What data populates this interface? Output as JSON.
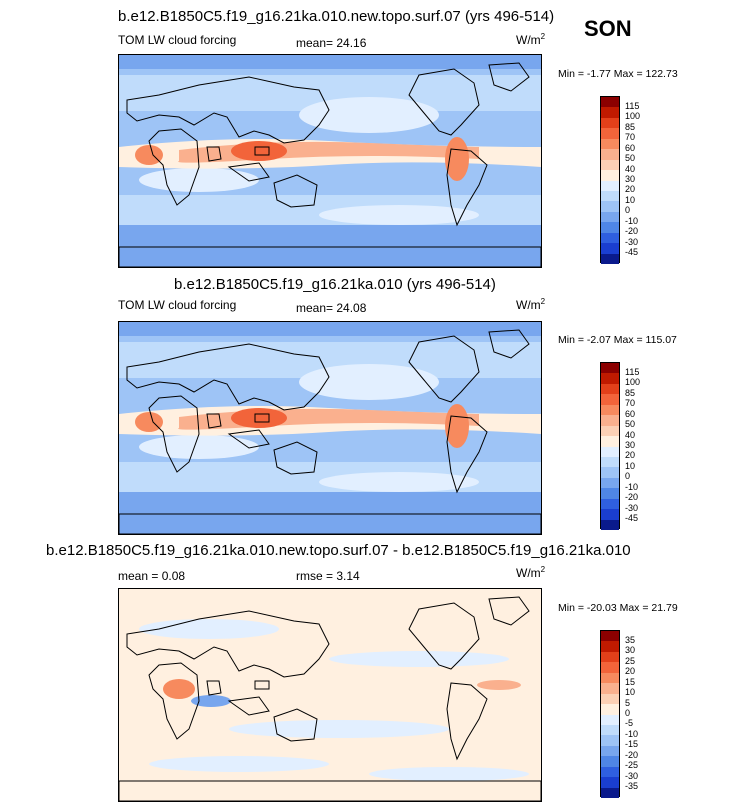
{
  "season": "SON",
  "units_base": "W/m",
  "units_exp": "2",
  "panels": [
    {
      "title": "b.e12.B1850C5.f19_g16.21ka.010.new.topo.surf.07 (yrs 496-514)",
      "subtitle": "TOM LW cloud forcing",
      "stat1": "mean=  24.16",
      "stat2": "",
      "minmax": "Min =  -1.77 Max = 122.73",
      "levels": [
        "115",
        "100",
        "85",
        "70",
        "60",
        "50",
        "40",
        "30",
        "20",
        "10",
        "0",
        "-10",
        "-20",
        "-30",
        "-45"
      ],
      "colors": [
        "#8b0000",
        "#c01a00",
        "#e2401a",
        "#f2643a",
        "#f78a5e",
        "#fab08e",
        "#fcd0b5",
        "#fff0e0",
        "#e2efff",
        "#c0dcfb",
        "#9ec4f6",
        "#78a6ee",
        "#4f86e6",
        "#2f5fe0",
        "#1a3ed0",
        "#0a1a8c"
      ],
      "style": "ltm"
    },
    {
      "title": "b.e12.B1850C5.f19_g16.21ka.010 (yrs 496-514)",
      "subtitle": "TOM LW cloud forcing",
      "stat1": "mean=  24.08",
      "stat2": "",
      "minmax": "Min =  -2.07 Max = 115.07",
      "levels": [
        "115",
        "100",
        "85",
        "70",
        "60",
        "50",
        "40",
        "30",
        "20",
        "10",
        "0",
        "-10",
        "-20",
        "-30",
        "-45"
      ],
      "colors": [
        "#8b0000",
        "#c01a00",
        "#e2401a",
        "#f2643a",
        "#f78a5e",
        "#fab08e",
        "#fcd0b5",
        "#fff0e0",
        "#e2efff",
        "#c0dcfb",
        "#9ec4f6",
        "#78a6ee",
        "#4f86e6",
        "#2f5fe0",
        "#1a3ed0",
        "#0a1a8c"
      ],
      "style": "ltm"
    },
    {
      "title": "b.e12.B1850C5.f19_g16.21ka.010.new.topo.surf.07 - b.e12.B1850C5.f19_g16.21ka.010",
      "subtitle": "mean =   0.08",
      "stat1": "rmse =   3.14",
      "stat2": "",
      "minmax": "Min = -20.03 Max =  21.79",
      "levels": [
        "35",
        "30",
        "25",
        "20",
        "15",
        "10",
        "5",
        "0",
        "-5",
        "-10",
        "-15",
        "-20",
        "-25",
        "-30",
        "-35"
      ],
      "colors": [
        "#8b0000",
        "#c01a00",
        "#e2401a",
        "#f2643a",
        "#f78a5e",
        "#fab08e",
        "#fcd0b5",
        "#fff0e0",
        "#e2efff",
        "#c0dcfb",
        "#9ec4f6",
        "#78a6ee",
        "#4f86e6",
        "#2f5fe0",
        "#1a3ed0",
        "#0a1a8c"
      ],
      "style": "diff"
    }
  ],
  "chart_data": [
    {
      "type": "heatmap",
      "title": "b.e12.B1850C5.f19_g16.21ka.010.new.topo.surf.07 (yrs 496-514)",
      "subtitle": "TOM LW cloud forcing",
      "units": "W/m2",
      "mean": 24.16,
      "min": -1.77,
      "max": 122.73,
      "contour_levels": [
        -45,
        -30,
        -20,
        -10,
        0,
        10,
        20,
        30,
        40,
        50,
        60,
        70,
        85,
        100,
        115
      ]
    },
    {
      "type": "heatmap",
      "title": "b.e12.B1850C5.f19_g16.21ka.010 (yrs 496-514)",
      "subtitle": "TOM LW cloud forcing",
      "units": "W/m2",
      "mean": 24.08,
      "min": -2.07,
      "max": 115.07,
      "contour_levels": [
        -45,
        -30,
        -20,
        -10,
        0,
        10,
        20,
        30,
        40,
        50,
        60,
        70,
        85,
        100,
        115
      ]
    },
    {
      "type": "heatmap",
      "title": "b.e12.B1850C5.f19_g16.21ka.010.new.topo.surf.07 - b.e12.B1850C5.f19_g16.21ka.010",
      "units": "W/m2",
      "mean": 0.08,
      "rmse": 3.14,
      "min": -20.03,
      "max": 21.79,
      "contour_levels": [
        -35,
        -30,
        -25,
        -20,
        -15,
        -10,
        -5,
        0,
        5,
        10,
        15,
        20,
        25,
        30,
        35
      ]
    }
  ]
}
